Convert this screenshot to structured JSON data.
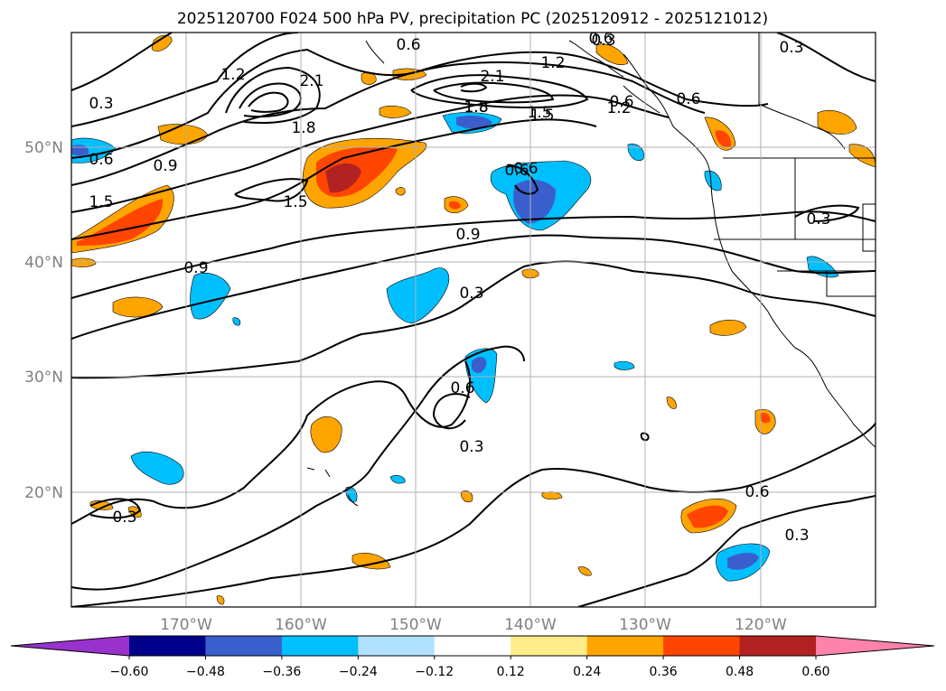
{
  "title": "2025120700 F024 500 hPa PV, precipitation PC (2025120912 - 2025121012)",
  "lat_labels": [
    "50°N",
    "40°N",
    "30°N",
    "20°N"
  ],
  "lon_labels": [
    "170°W",
    "160°W",
    "150°W",
    "140°W",
    "130°W",
    "120°W"
  ],
  "colorbar": {
    "ticks": [
      "−0.60",
      "−0.48",
      "−0.36",
      "−0.24",
      "−0.12",
      "0.12",
      "0.24",
      "0.36",
      "0.48",
      "0.60"
    ],
    "colors": [
      "#9932cc",
      "#00008b",
      "#3a5fcd",
      "#00bfff",
      "#b0e2ff",
      "#ffffff",
      "#ffec8b",
      "#ffa500",
      "#ff4500",
      "#b22222",
      "#ff82ab"
    ]
  },
  "contour_labels": [
    "0.3",
    "0.6",
    "0.9",
    "1.2",
    "1.5",
    "1.8",
    "2.1",
    "0.6",
    "0.3",
    "1.2",
    "0.6",
    "0.3",
    "1.5",
    "0.9",
    "0.6",
    "1.8",
    "1.5",
    "0.6",
    "0.3",
    "0.9",
    "0.3",
    "0.6",
    "0.3",
    "0.3",
    "0.6",
    "0.3",
    "1.5",
    "1.8",
    "2.1",
    "0.6",
    "0.6",
    "1.2"
  ]
}
